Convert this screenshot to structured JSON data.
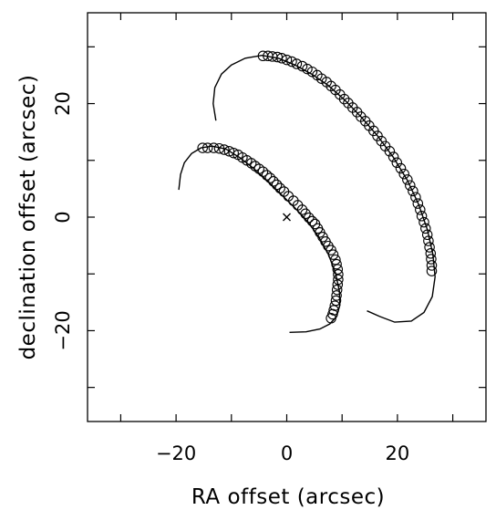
{
  "chart_data": {
    "type": "scatter",
    "title": "",
    "xlabel": "RA offset (arcsec)",
    "ylabel": "declination offset (arcsec)",
    "xlim": [
      -36,
      36
    ],
    "ylim": [
      -36,
      36
    ],
    "xticks": [
      -30,
      -20,
      -10,
      0,
      10,
      20,
      30
    ],
    "yticks": [
      -30,
      -20,
      -10,
      0,
      10,
      20,
      30
    ],
    "xtick_labels": [
      {
        "value": -20,
        "label": "−20"
      },
      {
        "value": 0,
        "label": "0"
      },
      {
        "value": 20,
        "label": "20"
      }
    ],
    "ytick_labels": [
      {
        "value": -20,
        "label": "−20"
      },
      {
        "value": 0,
        "label": "0"
      },
      {
        "value": 20,
        "label": "20"
      }
    ],
    "grid": false,
    "marker_color": "#000000",
    "center_marker": {
      "x": 0,
      "y": 0,
      "symbol": "×"
    },
    "series": [
      {
        "kind": "curve",
        "points": [
          [
            -19.5,
            4.8
          ],
          [
            -19.2,
            7.5
          ],
          [
            -18.5,
            9.6
          ],
          [
            -17.2,
            11.2
          ],
          [
            -15.5,
            12.2
          ],
          [
            -13.5,
            12.5
          ],
          [
            -11.0,
            12.0
          ],
          [
            -8.5,
            10.5
          ],
          [
            -6.0,
            8.6
          ],
          [
            -3.5,
            6.4
          ],
          [
            -1.0,
            4.0
          ],
          [
            1.5,
            1.6
          ],
          [
            3.8,
            -0.8
          ],
          [
            5.8,
            -3.5
          ],
          [
            7.5,
            -6.5
          ],
          [
            8.8,
            -9.8
          ],
          [
            9.5,
            -13.0
          ],
          [
            9.6,
            -15.5
          ],
          [
            9.0,
            -17.5
          ],
          [
            7.8,
            -18.8
          ],
          [
            6.0,
            -19.7
          ],
          [
            3.5,
            -20.2
          ],
          [
            0.5,
            -20.3
          ]
        ]
      },
      {
        "kind": "circles",
        "points": [
          [
            -15.2,
            12.2
          ],
          [
            -14.3,
            12.2
          ],
          [
            -13.2,
            12.2
          ],
          [
            -12.2,
            12.1
          ],
          [
            -11.3,
            11.9
          ],
          [
            -10.4,
            11.6
          ],
          [
            -9.6,
            11.3
          ],
          [
            -8.8,
            11.0
          ],
          [
            -8.0,
            10.5
          ],
          [
            -7.2,
            10.0
          ],
          [
            -6.4,
            9.5
          ],
          [
            -5.7,
            9.0
          ],
          [
            -5.0,
            8.5
          ],
          [
            -4.3,
            8.0
          ],
          [
            -3.6,
            7.4
          ],
          [
            -3.0,
            6.9
          ],
          [
            -2.4,
            6.3
          ],
          [
            -1.8,
            5.7
          ],
          [
            -1.2,
            5.1
          ],
          [
            -0.5,
            4.5
          ],
          [
            0.3,
            3.7
          ],
          [
            1.2,
            2.9
          ],
          [
            2.0,
            2.1
          ],
          [
            2.8,
            1.3
          ],
          [
            3.4,
            0.6
          ],
          [
            4.0,
            -0.1
          ],
          [
            4.6,
            -0.7
          ],
          [
            5.1,
            -1.2
          ],
          [
            5.6,
            -2.0
          ],
          [
            6.0,
            -2.7
          ],
          [
            6.5,
            -3.5
          ],
          [
            7.0,
            -4.3
          ],
          [
            7.5,
            -5.1
          ],
          [
            8.0,
            -5.8
          ],
          [
            8.4,
            -6.6
          ],
          [
            8.8,
            -7.5
          ],
          [
            9.0,
            -8.3
          ],
          [
            9.2,
            -9.2
          ],
          [
            9.3,
            -10.1
          ],
          [
            9.3,
            -11.0
          ],
          [
            9.2,
            -11.9
          ],
          [
            9.1,
            -12.8
          ],
          [
            9.0,
            -13.8
          ],
          [
            8.9,
            -14.7
          ],
          [
            8.7,
            -15.6
          ],
          [
            8.5,
            -16.4
          ],
          [
            8.3,
            -17.1
          ],
          [
            8.0,
            -17.8
          ]
        ]
      },
      {
        "kind": "curve",
        "points": [
          [
            -12.8,
            17.0
          ],
          [
            -13.3,
            20.0
          ],
          [
            -13.0,
            22.8
          ],
          [
            -11.8,
            25.2
          ],
          [
            -10.0,
            26.8
          ],
          [
            -7.5,
            28.0
          ],
          [
            -4.5,
            28.5
          ],
          [
            -1.5,
            28.0
          ],
          [
            1.5,
            26.8
          ],
          [
            4.5,
            25.2
          ],
          [
            7.5,
            23.2
          ],
          [
            10.5,
            20.6
          ],
          [
            13.5,
            17.6
          ],
          [
            16.5,
            14.2
          ],
          [
            19.3,
            10.5
          ],
          [
            21.8,
            6.5
          ],
          [
            23.8,
            2.3
          ],
          [
            25.4,
            -2.2
          ],
          [
            26.4,
            -6.5
          ],
          [
            26.8,
            -10.5
          ],
          [
            26.3,
            -14.0
          ],
          [
            24.8,
            -16.8
          ],
          [
            22.5,
            -18.3
          ],
          [
            19.5,
            -18.5
          ],
          [
            16.8,
            -17.5
          ],
          [
            14.5,
            -16.5
          ]
        ]
      },
      {
        "kind": "circles",
        "points": [
          [
            -4.3,
            28.4
          ],
          [
            -3.4,
            28.4
          ],
          [
            -2.6,
            28.3
          ],
          [
            -1.7,
            28.2
          ],
          [
            -0.9,
            28.0
          ],
          [
            0.0,
            27.7
          ],
          [
            0.9,
            27.4
          ],
          [
            1.8,
            27.0
          ],
          [
            2.8,
            26.6
          ],
          [
            3.7,
            26.1
          ],
          [
            4.6,
            25.6
          ],
          [
            5.5,
            25.0
          ],
          [
            6.3,
            24.4
          ],
          [
            7.2,
            23.8
          ],
          [
            8.0,
            23.1
          ],
          [
            8.8,
            22.4
          ],
          [
            9.6,
            21.6
          ],
          [
            10.4,
            20.8
          ],
          [
            11.1,
            20.1
          ],
          [
            11.9,
            19.3
          ],
          [
            12.7,
            18.5
          ],
          [
            13.4,
            17.7
          ],
          [
            14.2,
            16.9
          ],
          [
            14.9,
            16.1
          ],
          [
            15.7,
            15.2
          ],
          [
            16.4,
            14.3
          ],
          [
            17.1,
            13.4
          ],
          [
            17.8,
            12.5
          ],
          [
            18.6,
            11.6
          ],
          [
            19.3,
            10.6
          ],
          [
            19.9,
            9.6
          ],
          [
            20.6,
            8.6
          ],
          [
            21.2,
            7.6
          ],
          [
            21.8,
            6.6
          ],
          [
            22.3,
            5.6
          ],
          [
            22.8,
            4.6
          ],
          [
            23.3,
            3.5
          ],
          [
            23.7,
            2.4
          ],
          [
            24.1,
            1.3
          ],
          [
            24.4,
            0.2
          ],
          [
            24.8,
            -0.9
          ],
          [
            25.1,
            -2.0
          ],
          [
            25.4,
            -3.1
          ],
          [
            25.6,
            -4.2
          ],
          [
            25.8,
            -5.3
          ],
          [
            26.0,
            -6.4
          ],
          [
            26.1,
            -7.4
          ],
          [
            26.2,
            -8.5
          ],
          [
            26.2,
            -9.5
          ]
        ]
      }
    ]
  }
}
